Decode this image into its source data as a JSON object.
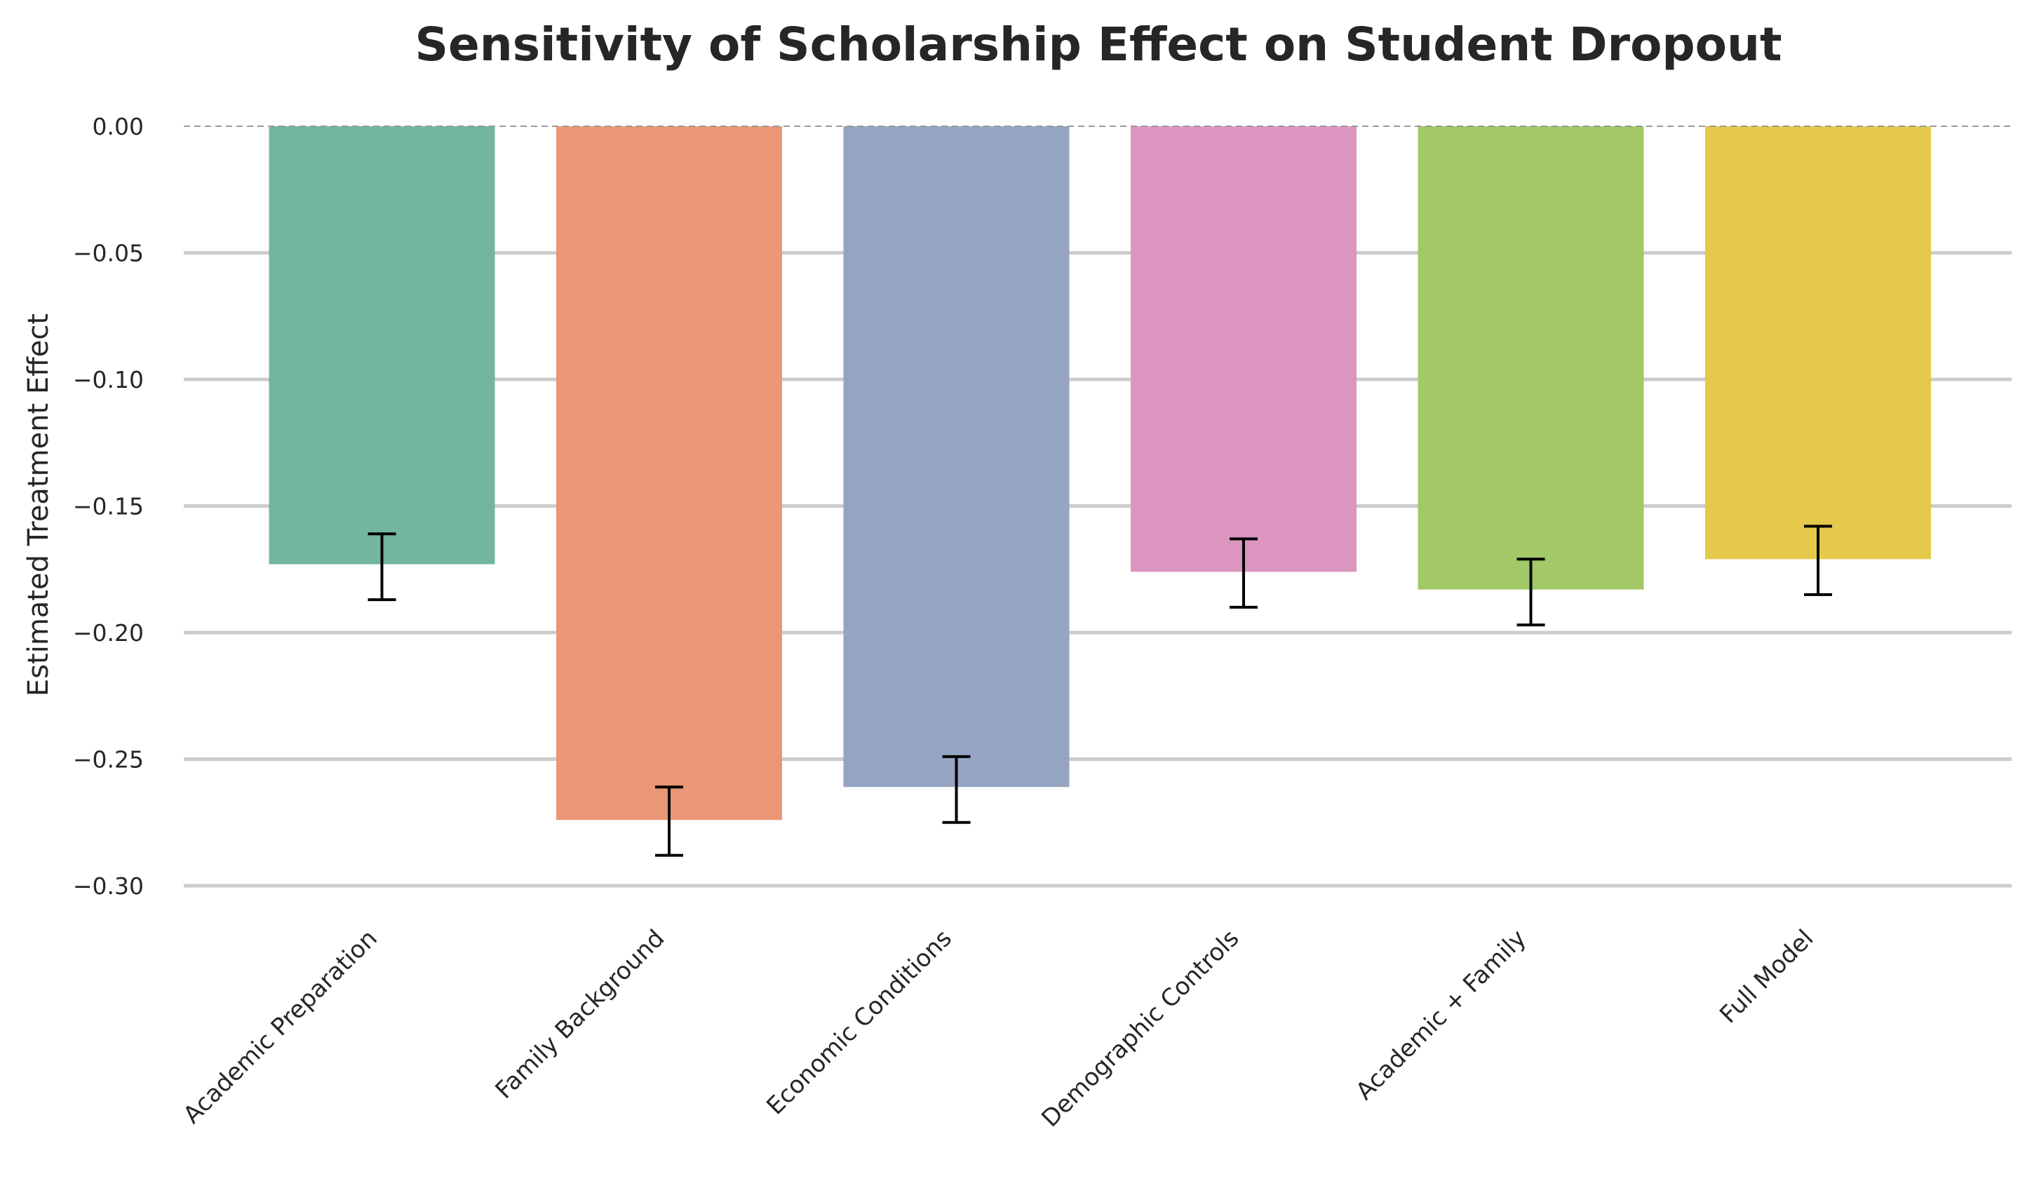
{
  "chart_data": {
    "type": "bar",
    "title": "Sensitivity of Scholarship Effect on Student Dropout",
    "xlabel": "",
    "ylabel": "Estimated Treatment Effect",
    "ylim": [
      -0.3,
      0.0
    ],
    "yticks": [
      0.0,
      -0.05,
      -0.1,
      -0.15,
      -0.2,
      -0.25,
      -0.3
    ],
    "ytick_labels": [
      "0.00",
      "−0.05",
      "−0.10",
      "−0.15",
      "−0.20",
      "−0.25",
      "−0.30"
    ],
    "categories": [
      "Academic Preparation",
      "Family Background",
      "Economic Conditions",
      "Demographic Controls",
      "Academic + Family",
      "Full Model"
    ],
    "values": [
      -0.173,
      -0.274,
      -0.261,
      -0.176,
      -0.183,
      -0.171
    ],
    "error_low": [
      -0.187,
      -0.288,
      -0.275,
      -0.19,
      -0.197,
      -0.185
    ],
    "error_high": [
      -0.161,
      -0.261,
      -0.249,
      -0.163,
      -0.171,
      -0.158
    ],
    "colors": [
      "#72b5a0",
      "#e99774",
      "#94a4c2",
      "#db95bf",
      "#a2c867",
      "#e4c94a"
    ],
    "grid": true,
    "zero_line": "dashed",
    "legend": "none"
  }
}
